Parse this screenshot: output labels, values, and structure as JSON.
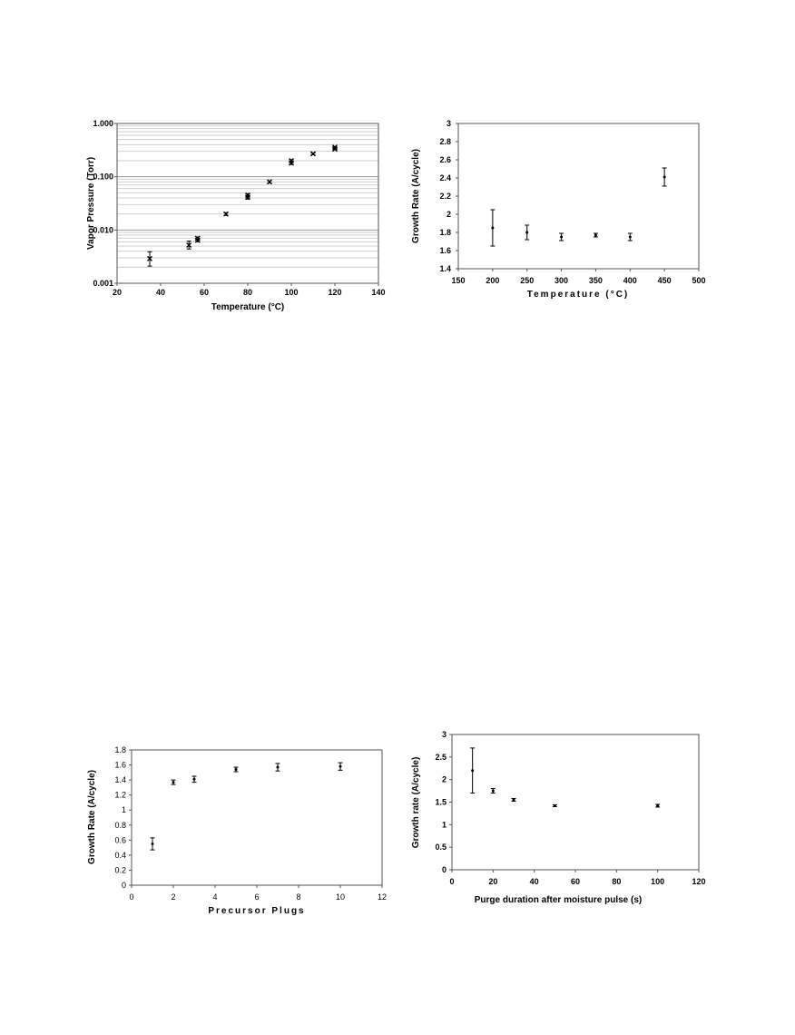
{
  "chart_data": [
    {
      "type": "scatter",
      "id": "vapor",
      "xlabel": "Temperature (°C)",
      "ylabel": "Vapor Pressure (Torr)",
      "xlim": [
        20,
        140
      ],
      "ylim": [
        0.001,
        1.0
      ],
      "yscale": "log",
      "grid": true,
      "legend": "none",
      "x_ticks": [
        20,
        40,
        60,
        80,
        100,
        120,
        140
      ],
      "y_ticks": [
        0.001,
        0.01,
        0.1,
        1.0
      ],
      "y_tick_labels": [
        "0.001",
        "0.010",
        "0.100",
        "1.000"
      ],
      "marker": "x",
      "points": [
        {
          "x": 35,
          "y": 0.0029,
          "lo": 0.0021,
          "hi": 0.0039
        },
        {
          "x": 53,
          "y": 0.0052,
          "lo": 0.0044,
          "hi": 0.0062
        },
        {
          "x": 57,
          "y": 0.0064,
          "lo": 0.006,
          "hi": 0.0069
        },
        {
          "x": 57,
          "y": 0.007,
          "lo": 0.0066,
          "hi": 0.0074
        },
        {
          "x": 70,
          "y": 0.02,
          "lo": 0.0188,
          "hi": 0.0212
        },
        {
          "x": 80,
          "y": 0.041,
          "lo": 0.038,
          "hi": 0.044
        },
        {
          "x": 80,
          "y": 0.045,
          "lo": 0.042,
          "hi": 0.048
        },
        {
          "x": 90,
          "y": 0.08,
          "lo": 0.076,
          "hi": 0.084
        },
        {
          "x": 100,
          "y": 0.18,
          "lo": 0.17,
          "hi": 0.19
        },
        {
          "x": 100,
          "y": 0.2,
          "lo": 0.19,
          "hi": 0.21
        },
        {
          "x": 110,
          "y": 0.27,
          "lo": 0.26,
          "hi": 0.28
        },
        {
          "x": 120,
          "y": 0.33,
          "lo": 0.32,
          "hi": 0.34
        },
        {
          "x": 120,
          "y": 0.36,
          "lo": 0.35,
          "hi": 0.37
        }
      ]
    },
    {
      "type": "scatter",
      "id": "growth-temp",
      "xlabel": "Temperature (°C)",
      "ylabel": "Growth Rate (A/cycle)",
      "xlim": [
        150,
        500
      ],
      "ylim": [
        1.4,
        3.0
      ],
      "grid": false,
      "legend": "none",
      "x_ticks": [
        150,
        200,
        250,
        300,
        350,
        400,
        450,
        500
      ],
      "y_ticks": [
        1.4,
        1.6,
        1.8,
        2.0,
        2.2,
        2.4,
        2.6,
        2.8,
        3.0
      ],
      "y_tick_labels": [
        "1.4",
        "1.6",
        "1.8",
        "2",
        "2.2",
        "2.4",
        "2.6",
        "2.8",
        "3"
      ],
      "marker": "dot",
      "points": [
        {
          "x": 200,
          "y": 1.85,
          "lo": 1.65,
          "hi": 2.05
        },
        {
          "x": 250,
          "y": 1.8,
          "lo": 1.72,
          "hi": 1.88
        },
        {
          "x": 300,
          "y": 1.75,
          "lo": 1.71,
          "hi": 1.79
        },
        {
          "x": 350,
          "y": 1.77,
          "lo": 1.75,
          "hi": 1.79
        },
        {
          "x": 400,
          "y": 1.75,
          "lo": 1.71,
          "hi": 1.79
        },
        {
          "x": 450,
          "y": 2.41,
          "lo": 2.31,
          "hi": 2.51
        }
      ]
    },
    {
      "type": "scatter",
      "id": "growth-plugs",
      "xlabel": "Precursor Plugs",
      "ylabel": "Growth Rate (A/cycle)",
      "xlim": [
        0,
        12
      ],
      "ylim": [
        0,
        1.8
      ],
      "grid": false,
      "legend": "none",
      "x_ticks": [
        0,
        2,
        4,
        6,
        8,
        10,
        12
      ],
      "y_ticks": [
        0,
        0.2,
        0.4,
        0.6,
        0.8,
        1.0,
        1.2,
        1.4,
        1.6,
        1.8
      ],
      "y_tick_labels": [
        "0",
        "0.2",
        "0.4",
        "0.6",
        "0.8",
        "1",
        "1.2",
        "1.4",
        "1.6",
        "1.8"
      ],
      "marker": "dot",
      "points": [
        {
          "x": 1,
          "y": 0.55,
          "lo": 0.47,
          "hi": 0.63
        },
        {
          "x": 2,
          "y": 1.37,
          "lo": 1.34,
          "hi": 1.4
        },
        {
          "x": 3,
          "y": 1.41,
          "lo": 1.37,
          "hi": 1.45
        },
        {
          "x": 5,
          "y": 1.54,
          "lo": 1.51,
          "hi": 1.57
        },
        {
          "x": 7,
          "y": 1.57,
          "lo": 1.52,
          "hi": 1.62
        },
        {
          "x": 10,
          "y": 1.58,
          "lo": 1.53,
          "hi": 1.63
        }
      ]
    },
    {
      "type": "scatter",
      "id": "growth-purge",
      "xlabel": "Purge duration after moisture pulse (s)",
      "ylabel": "Growth rate (A/cycle)",
      "xlim": [
        0,
        120
      ],
      "ylim": [
        0,
        3.0
      ],
      "grid": false,
      "legend": "none",
      "x_ticks": [
        0,
        20,
        40,
        60,
        80,
        100,
        120
      ],
      "y_ticks": [
        0,
        0.5,
        1.0,
        1.5,
        2.0,
        2.5,
        3.0
      ],
      "y_tick_labels": [
        "0",
        "0.5",
        "1",
        "1.5",
        "2",
        "2.5",
        "3"
      ],
      "marker": "dot",
      "points": [
        {
          "x": 10,
          "y": 2.2,
          "lo": 1.7,
          "hi": 2.7
        },
        {
          "x": 20,
          "y": 1.75,
          "lo": 1.7,
          "hi": 1.8
        },
        {
          "x": 30,
          "y": 1.55,
          "lo": 1.52,
          "hi": 1.58
        },
        {
          "x": 50,
          "y": 1.42,
          "lo": 1.4,
          "hi": 1.44
        },
        {
          "x": 100,
          "y": 1.42,
          "lo": 1.39,
          "hi": 1.45
        }
      ]
    }
  ]
}
